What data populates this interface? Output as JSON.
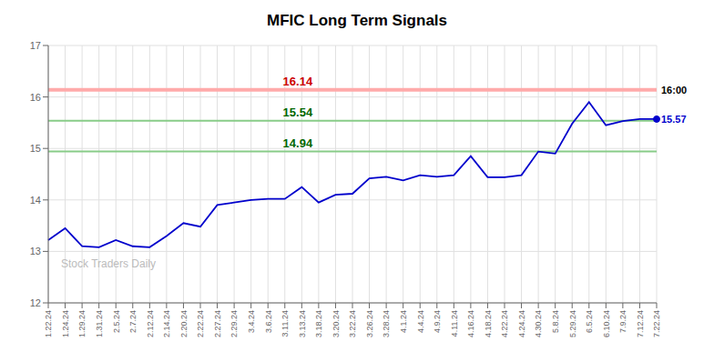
{
  "chart_data": {
    "type": "line",
    "title": "MFIC Long Term Signals",
    "categories": [
      "1.22.24",
      "1.24.24",
      "1.29.24",
      "1.31.24",
      "2.5.24",
      "2.7.24",
      "2.12.24",
      "2.14.24",
      "2.20.24",
      "2.22.24",
      "2.27.24",
      "2.29.24",
      "3.4.24",
      "3.6.24",
      "3.11.24",
      "3.13.24",
      "3.18.24",
      "3.20.24",
      "3.22.24",
      "3.26.24",
      "3.28.24",
      "4.1.24",
      "4.4.24",
      "4.9.24",
      "4.11.24",
      "4.16.24",
      "4.18.24",
      "4.22.24",
      "4.24.24",
      "4.30.24",
      "5.8.24",
      "5.29.24",
      "6.5.24",
      "6.10.24",
      "7.9.24",
      "7.12.24",
      "7.22.24"
    ],
    "values": [
      13.22,
      13.45,
      13.1,
      13.08,
      13.22,
      13.1,
      13.08,
      13.3,
      13.55,
      13.48,
      13.9,
      13.95,
      14.0,
      14.02,
      14.02,
      14.25,
      13.95,
      14.1,
      14.12,
      14.42,
      14.45,
      14.38,
      14.48,
      14.45,
      14.48,
      14.85,
      14.44,
      14.44,
      14.48,
      14.94,
      14.9,
      15.48,
      15.9,
      15.45,
      15.53,
      15.57,
      15.57
    ],
    "color": "#0000cc",
    "ylim": [
      12,
      17
    ],
    "yticks": [
      12,
      13,
      14,
      15,
      16,
      17
    ],
    "grid": true,
    "hlines": [
      {
        "value": 16.14,
        "label": "16.14",
        "color": "#ffaaaa",
        "label_color": "#cc0000"
      },
      {
        "value": 15.54,
        "label": "15.54",
        "color": "#88cc88",
        "label_color": "#006600"
      },
      {
        "value": 14.94,
        "label": "14.94",
        "color": "#88cc88",
        "label_color": "#006600"
      }
    ],
    "annotations": [
      {
        "text": "16:00",
        "y": 16.14,
        "color": "#000000"
      },
      {
        "text": "15.57",
        "y": 15.57,
        "color": "#0000cc"
      }
    ],
    "watermark": {
      "text": "Stock Traders Daily",
      "color": "#bbbbbb"
    }
  }
}
